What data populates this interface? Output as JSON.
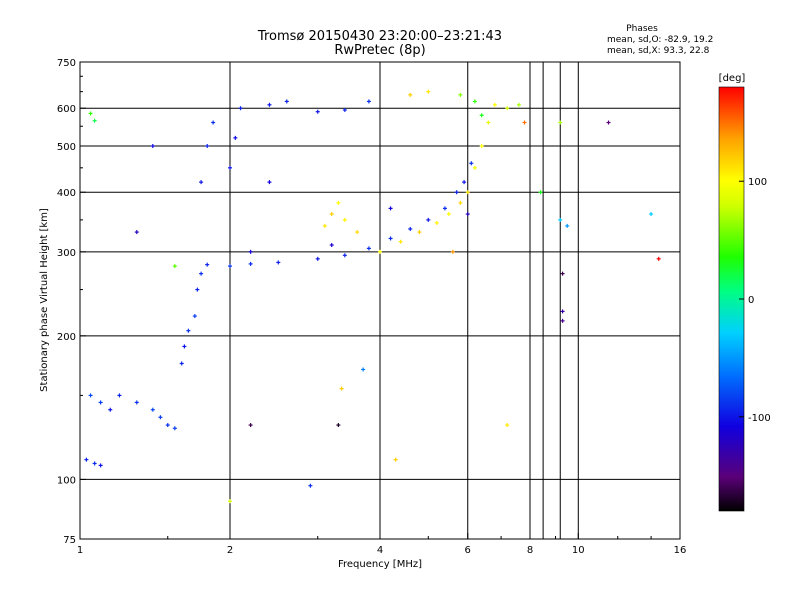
{
  "chart_data": {
    "type": "scatter",
    "title": "Tromsø 20150430 23:20:00–23:21:43",
    "subtitle": "RwPretec (8p)",
    "stats_header": "Phases",
    "stats_line_o": "mean, sd,O: -82.9, 19.2",
    "stats_line_x": "mean, sd,X:  93.3, 22.8",
    "xlabel": "Frequency [MHz]",
    "ylabel": "Stationary phase Virtual Height [km]",
    "x_scale": "log",
    "y_scale": "log",
    "xlim": [
      1,
      16
    ],
    "ylim": [
      75,
      750
    ],
    "x_ticks": [
      1,
      2,
      4,
      6,
      8,
      10,
      16
    ],
    "x_tick_labels": [
      "1",
      "2",
      "4",
      "6",
      "8",
      "10",
      "16"
    ],
    "y_ticks": [
      75,
      100,
      200,
      300,
      400,
      500,
      600,
      750
    ],
    "y_tick_labels": [
      "75",
      "100",
      "200",
      "300",
      "400",
      "500",
      "600",
      "750"
    ],
    "grid": true,
    "colorbar": {
      "label": "[deg]",
      "range": [
        -180,
        180
      ],
      "ticks": [
        100,
        0,
        -100
      ],
      "tick_labels": [
        "100",
        "0",
        "-100"
      ]
    },
    "series": [
      {
        "note_role": "O-mode traces",
        "color_by_phase": true,
        "points": [
          [
            1.03,
            110,
            -95
          ],
          [
            1.07,
            108,
            -90
          ],
          [
            1.1,
            107,
            -100
          ],
          [
            1.05,
            150,
            -80
          ],
          [
            1.1,
            145,
            -85
          ],
          [
            1.15,
            140,
            -100
          ],
          [
            1.2,
            150,
            -95
          ],
          [
            1.3,
            145,
            -90
          ],
          [
            1.4,
            140,
            -80
          ],
          [
            1.45,
            135,
            -85
          ],
          [
            1.5,
            130,
            -90
          ],
          [
            1.55,
            128,
            -85
          ],
          [
            1.6,
            175,
            -95
          ],
          [
            1.62,
            190,
            -100
          ],
          [
            1.65,
            205,
            -90
          ],
          [
            1.7,
            220,
            -85
          ],
          [
            1.72,
            250,
            -95
          ],
          [
            1.75,
            270,
            -90
          ],
          [
            1.8,
            282,
            -95
          ],
          [
            2.0,
            280,
            -88
          ],
          [
            2.2,
            283,
            -92
          ],
          [
            2.5,
            285,
            -95
          ],
          [
            3.0,
            290,
            -100
          ],
          [
            3.4,
            295,
            -95
          ],
          [
            3.8,
            305,
            -90
          ],
          [
            4.2,
            320,
            -92
          ],
          [
            4.6,
            335,
            -95
          ],
          [
            5.0,
            350,
            -100
          ],
          [
            5.4,
            370,
            -90
          ],
          [
            5.7,
            400,
            -95
          ],
          [
            5.9,
            420,
            -100
          ],
          [
            6.1,
            460,
            -90
          ],
          [
            1.75,
            420,
            -100
          ],
          [
            1.8,
            500,
            -95
          ],
          [
            1.85,
            560,
            -90
          ],
          [
            2.0,
            450,
            -100
          ],
          [
            2.05,
            520,
            -105
          ],
          [
            2.1,
            600,
            -95
          ],
          [
            2.4,
            610,
            -100
          ],
          [
            2.6,
            620,
            -95
          ],
          [
            3.0,
            590,
            -100
          ],
          [
            3.4,
            595,
            -95
          ],
          [
            3.8,
            620,
            -90
          ],
          [
            2.4,
            420,
            -110
          ],
          [
            2.2,
            300,
            -110
          ],
          [
            3.2,
            310,
            -115
          ],
          [
            4.2,
            370,
            -110
          ],
          [
            6.0,
            360,
            -120
          ]
        ]
      },
      {
        "note_role": "X-mode traces",
        "color_by_phase": true,
        "points": [
          [
            3.1,
            340,
            110
          ],
          [
            3.2,
            360,
            120
          ],
          [
            3.3,
            380,
            100
          ],
          [
            3.4,
            350,
            105
          ],
          [
            3.6,
            330,
            115
          ],
          [
            4.0,
            300,
            100
          ],
          [
            4.4,
            315,
            110
          ],
          [
            4.8,
            330,
            120
          ],
          [
            5.2,
            345,
            105
          ],
          [
            5.5,
            360,
            100
          ],
          [
            5.8,
            380,
            115
          ],
          [
            6.0,
            400,
            110
          ],
          [
            6.2,
            450,
            95
          ],
          [
            6.4,
            500,
            100
          ],
          [
            6.6,
            560,
            90
          ],
          [
            6.8,
            610,
            100
          ],
          [
            7.2,
            600,
            80
          ],
          [
            7.6,
            610,
            70
          ],
          [
            4.6,
            640,
            120
          ],
          [
            5.0,
            650,
            110
          ],
          [
            5.8,
            640,
            60
          ],
          [
            6.2,
            620,
            40
          ],
          [
            6.4,
            580,
            30
          ],
          [
            5.6,
            300,
            140
          ]
        ]
      },
      {
        "note_role": "scattered",
        "color_by_phase": true,
        "points": [
          [
            1.05,
            585,
            40
          ],
          [
            1.07,
            565,
            20
          ],
          [
            1.3,
            330,
            -120
          ],
          [
            1.4,
            500,
            -105
          ],
          [
            1.55,
            280,
            50
          ],
          [
            2.0,
            90,
            80
          ],
          [
            2.2,
            130,
            -160
          ],
          [
            2.9,
            97,
            -90
          ],
          [
            3.3,
            130,
            -170
          ],
          [
            3.35,
            155,
            120
          ],
          [
            3.7,
            170,
            -60
          ],
          [
            4.3,
            110,
            120
          ],
          [
            7.2,
            130,
            110
          ],
          [
            7.8,
            560,
            150
          ],
          [
            8.4,
            400,
            30
          ],
          [
            9.2,
            560,
            70
          ],
          [
            9.2,
            350,
            -30
          ],
          [
            9.3,
            225,
            -130
          ],
          [
            9.3,
            215,
            -140
          ],
          [
            9.3,
            270,
            -160
          ],
          [
            9.5,
            340,
            -50
          ],
          [
            11.5,
            560,
            -150
          ],
          [
            14.0,
            360,
            -30
          ],
          [
            14.5,
            290,
            180
          ]
        ]
      }
    ]
  }
}
